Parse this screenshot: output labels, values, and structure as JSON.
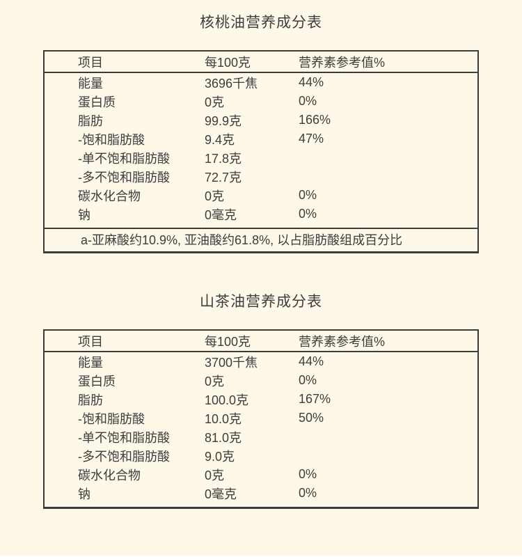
{
  "page": {
    "background_color": "#fdf8e8",
    "text_color": "#3d3d3d",
    "border_color": "#3b3b3b"
  },
  "tables": [
    {
      "title": "核桃油营养成分表",
      "columns": [
        "项目",
        "每100克",
        "营养素参考值%"
      ],
      "rows": [
        [
          "能量",
          "3696千焦",
          "44%"
        ],
        [
          "蛋白质",
          "0克",
          "0%"
        ],
        [
          "脂肪",
          "99.9克",
          "166%"
        ],
        [
          "-饱和脂肪酸",
          "9.4克",
          "47%"
        ],
        [
          "-单不饱和脂肪酸",
          "17.8克",
          ""
        ],
        [
          "-多不饱和脂肪酸",
          "72.7克",
          ""
        ],
        [
          "碳水化合物",
          "0克",
          "0%"
        ],
        [
          "钠",
          "0毫克",
          "0%"
        ]
      ],
      "footnote": "a-亚麻酸约10.9%, 亚油酸约61.8%, 以占脂肪酸组成百分比"
    },
    {
      "title": "山茶油营养成分表",
      "columns": [
        "项目",
        "每100克",
        "营养素参考值%"
      ],
      "rows": [
        [
          "能量",
          "3700千焦",
          "44%"
        ],
        [
          "蛋白质",
          "0克",
          "0%"
        ],
        [
          "脂肪",
          "100.0克",
          "167%"
        ],
        [
          "-饱和脂肪酸",
          "10.0克",
          "50%"
        ],
        [
          "-单不饱和脂肪酸",
          "81.0克",
          ""
        ],
        [
          "-多不饱和脂肪酸",
          "9.0克",
          ""
        ],
        [
          "碳水化合物",
          "0克",
          "0%"
        ],
        [
          "钠",
          "0毫克",
          "0%"
        ]
      ]
    }
  ]
}
